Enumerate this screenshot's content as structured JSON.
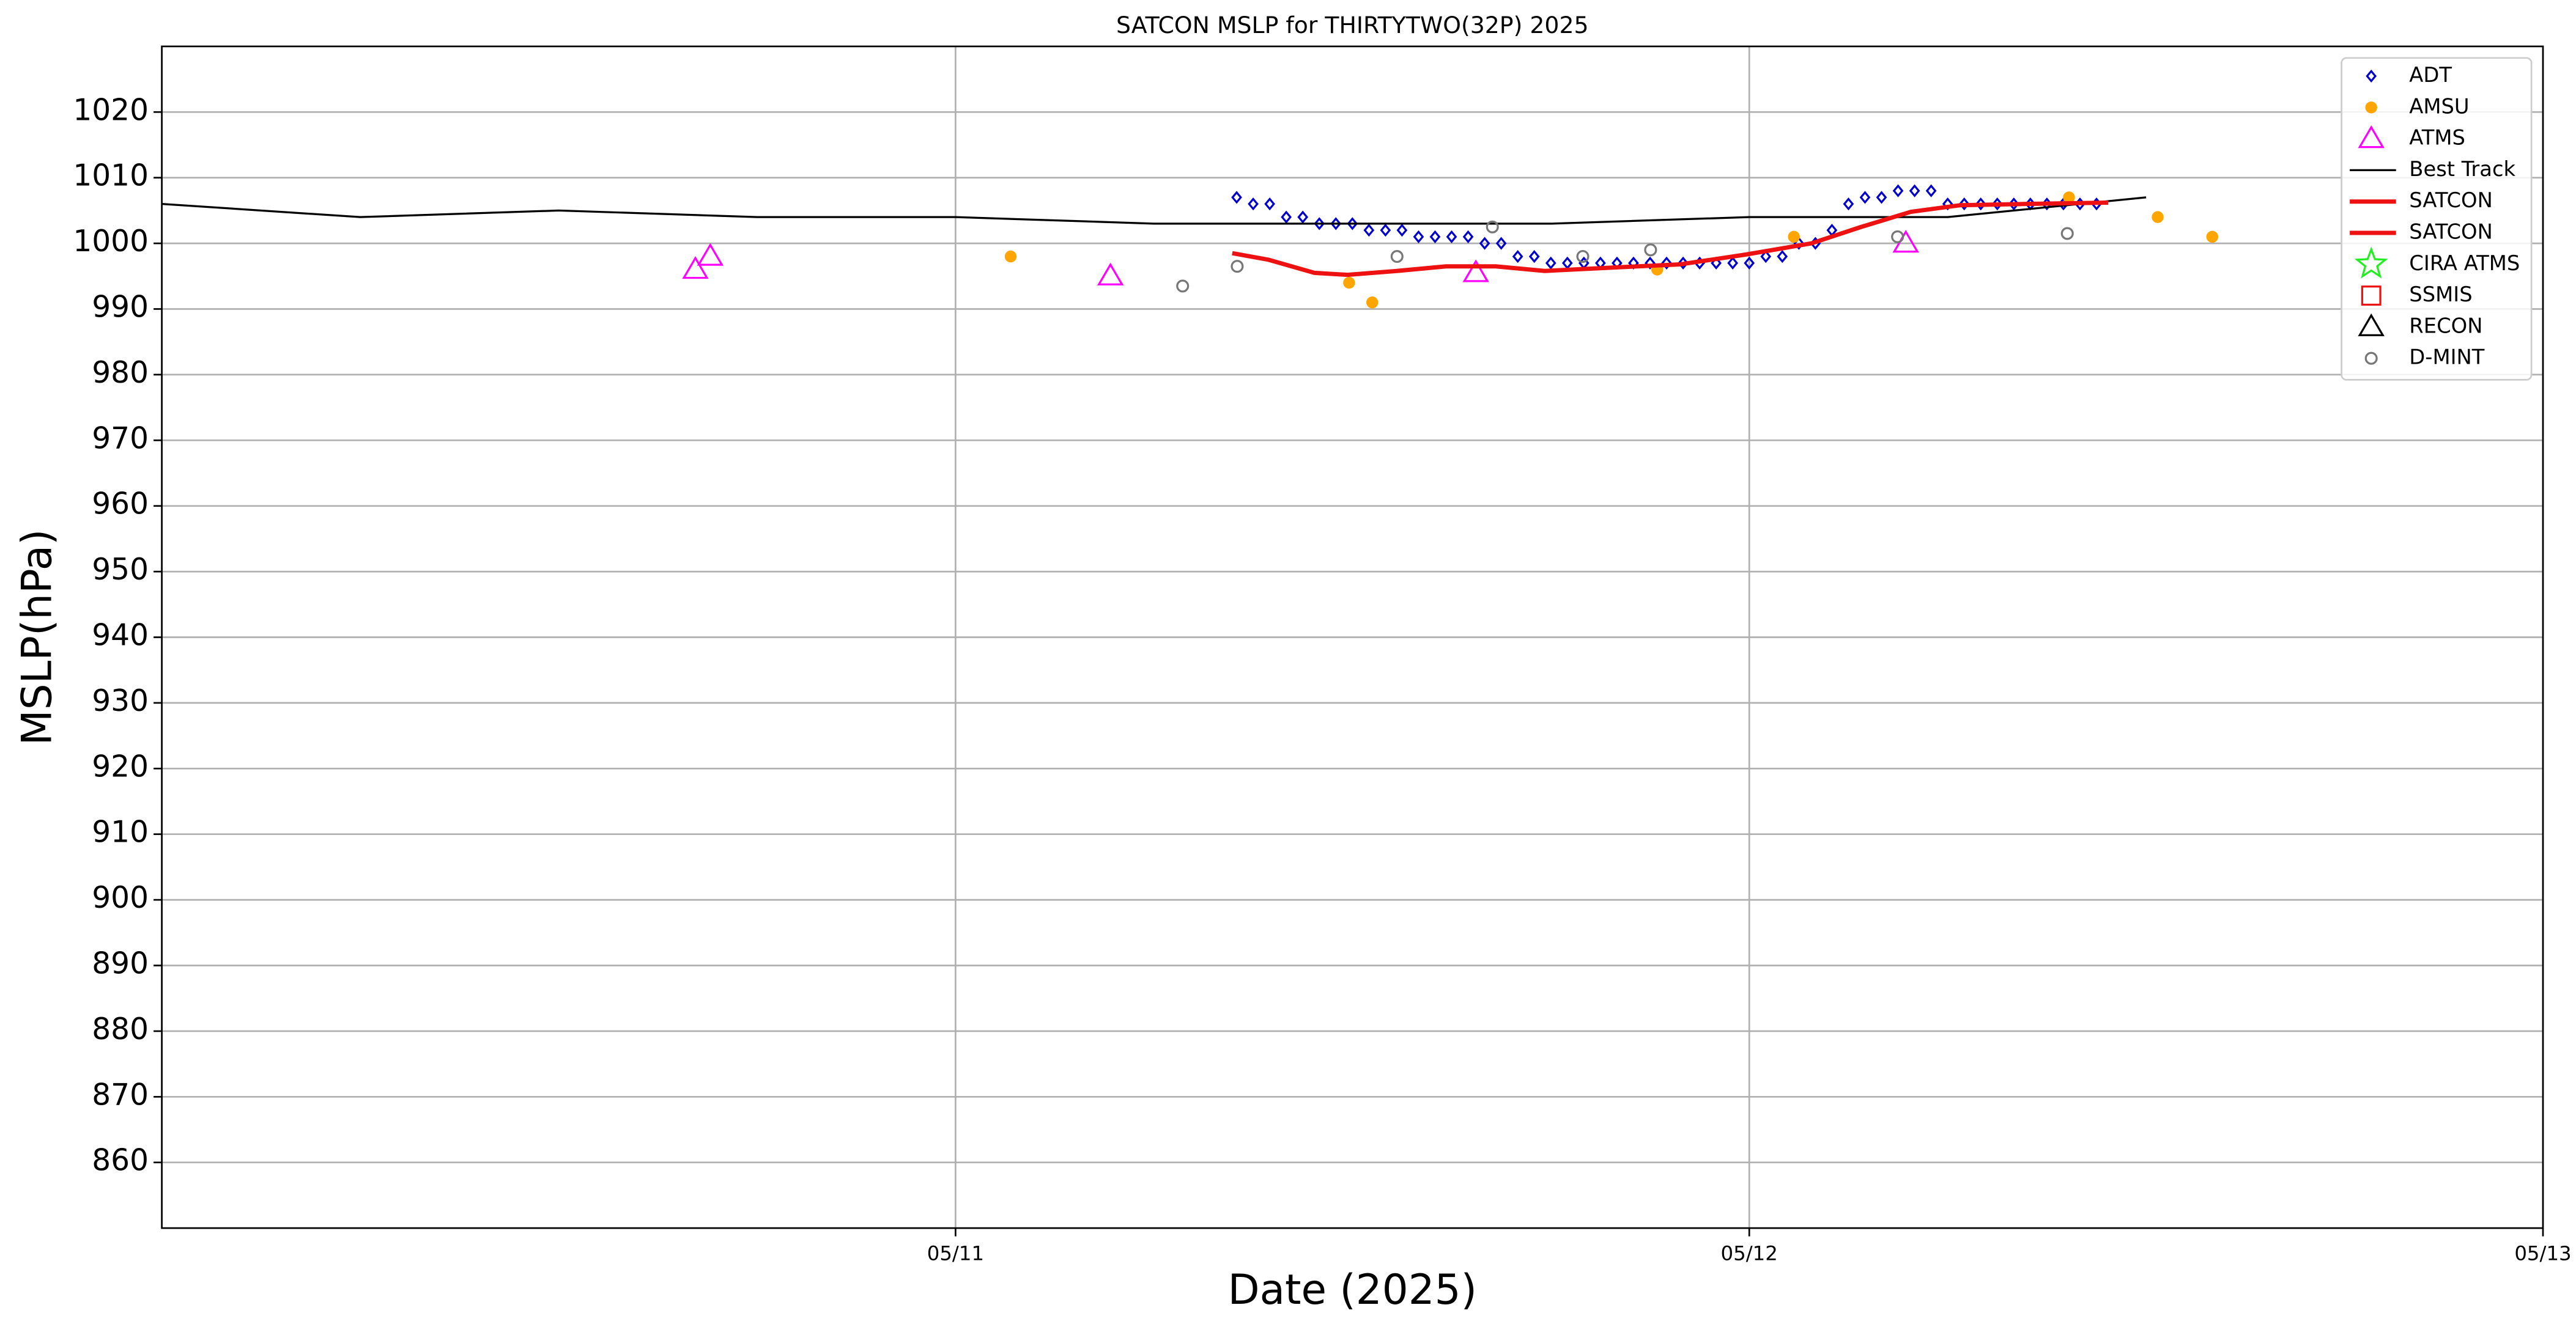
{
  "chart_data": {
    "type": "line",
    "title": "SATCON MSLP for THIRTYTWO(32P) 2025",
    "xlabel": "Date (2025)",
    "ylabel": "MSLP(hPa)",
    "xlim": [
      "2025-05-10T00:00",
      "2025-05-13T00:00"
    ],
    "xticks": [
      {
        "value": "2025-05-11T00:00",
        "label": "05/11"
      },
      {
        "value": "2025-05-12T00:00",
        "label": "05/12"
      },
      {
        "value": "2025-05-13T00:00",
        "label": "05/13"
      }
    ],
    "ylim": [
      850,
      1030
    ],
    "yticks": [
      860,
      870,
      880,
      890,
      900,
      910,
      920,
      930,
      940,
      950,
      960,
      970,
      980,
      990,
      1000,
      1010,
      1020
    ],
    "grid": true,
    "legend": "upper right",
    "series": [
      {
        "name": "ADT",
        "color": "#0000cc",
        "marker": "diamond",
        "filled": false,
        "x": [
          "2025-05-11T08:30",
          "2025-05-11T09:00",
          "2025-05-11T09:30",
          "2025-05-11T10:00",
          "2025-05-11T10:30",
          "2025-05-11T11:00",
          "2025-05-11T11:30",
          "2025-05-11T12:00",
          "2025-05-11T12:30",
          "2025-05-11T13:00",
          "2025-05-11T13:30",
          "2025-05-11T14:00",
          "2025-05-11T14:30",
          "2025-05-11T15:00",
          "2025-05-11T15:30",
          "2025-05-11T16:00",
          "2025-05-11T16:30",
          "2025-05-11T17:00",
          "2025-05-11T17:30",
          "2025-05-11T18:00",
          "2025-05-11T18:30",
          "2025-05-11T19:00",
          "2025-05-11T19:30",
          "2025-05-11T20:00",
          "2025-05-11T20:30",
          "2025-05-11T21:00",
          "2025-05-11T21:30",
          "2025-05-11T22:00",
          "2025-05-11T22:30",
          "2025-05-11T23:00",
          "2025-05-11T23:30",
          "2025-05-12T00:00",
          "2025-05-12T00:30",
          "2025-05-12T01:00",
          "2025-05-12T01:30",
          "2025-05-12T02:00",
          "2025-05-12T02:30",
          "2025-05-12T03:00",
          "2025-05-12T03:30",
          "2025-05-12T04:00",
          "2025-05-12T04:30",
          "2025-05-12T05:00",
          "2025-05-12T05:30",
          "2025-05-12T06:00",
          "2025-05-12T06:30",
          "2025-05-12T07:00",
          "2025-05-12T07:30",
          "2025-05-12T08:00",
          "2025-05-12T08:30",
          "2025-05-12T09:00",
          "2025-05-12T09:30",
          "2025-05-12T10:00",
          "2025-05-12T10:30"
        ],
        "values": [
          1007,
          1006,
          1006,
          1004,
          1004,
          1003,
          1003,
          1003,
          1002,
          1002,
          1002,
          1001,
          1001,
          1001,
          1001,
          1000,
          1000,
          998,
          998,
          997,
          997,
          997,
          997,
          997,
          997,
          997,
          997,
          997,
          997,
          997,
          997,
          997,
          998,
          998,
          1000,
          1000,
          1002,
          1006,
          1007,
          1007,
          1008,
          1008,
          1008,
          1006,
          1006,
          1006,
          1006,
          1006,
          1006,
          1006,
          1006,
          1006,
          1006
        ]
      },
      {
        "name": "AMSU",
        "color": "#ffa500",
        "marker": "circle",
        "filled": true,
        "x": [
          "2025-05-11T01:40",
          "2025-05-11T11:54",
          "2025-05-11T12:36",
          "2025-05-11T21:13",
          "2025-05-12T01:21",
          "2025-05-12T09:40",
          "2025-05-12T12:21",
          "2025-05-12T14:00"
        ],
        "values": [
          998,
          994,
          991,
          996,
          1001,
          1007,
          1004,
          1001
        ]
      },
      {
        "name": "ATMS",
        "color": "#ff00ff",
        "marker": "triangle",
        "filled": false,
        "x": [
          "2025-05-10T16:08",
          "2025-05-10T16:35",
          "2025-05-11T04:41",
          "2025-05-11T15:44",
          "2025-05-12T04:44"
        ],
        "values": [
          996,
          998,
          995,
          995.5,
          1000
        ]
      },
      {
        "name": "Best Track",
        "color": "#000000",
        "marker": "line",
        "width": 1.2,
        "x": [
          "2025-05-10T00:00",
          "2025-05-10T06:00",
          "2025-05-10T12:00",
          "2025-05-10T18:00",
          "2025-05-11T00:00",
          "2025-05-11T06:00",
          "2025-05-11T12:00",
          "2025-05-11T18:00",
          "2025-05-12T00:00",
          "2025-05-12T06:00",
          "2025-05-12T12:00"
        ],
        "values": [
          1006,
          1004,
          1005,
          1004,
          1004,
          1003,
          1003,
          1003,
          1004,
          1004,
          1007
        ]
      },
      {
        "name": "SATCON",
        "color": "#ee1111",
        "marker": "line",
        "width": 2.6,
        "x": [
          "2025-05-11T08:22",
          "2025-05-11T09:28",
          "2025-05-11T10:51",
          "2025-05-11T11:51",
          "2025-05-11T13:21",
          "2025-05-11T14:50",
          "2025-05-11T16:20",
          "2025-05-11T17:49",
          "2025-05-11T19:49",
          "2025-05-11T21:55",
          "2025-05-11T23:54",
          "2025-05-12T01:53",
          "2025-05-12T03:23",
          "2025-05-12T04:53",
          "2025-05-12T06:22",
          "2025-05-12T08:22",
          "2025-05-12T10:51"
        ],
        "values": [
          998.5,
          997.5,
          995.5,
          995.2,
          995.8,
          996.5,
          996.5,
          995.8,
          996.3,
          996.8,
          998.3,
          1000,
          1002.5,
          1004.8,
          1005.8,
          1006,
          1006.2
        ]
      },
      {
        "name": "SATCON",
        "color": "#ee1111",
        "marker": "line",
        "width": 2.6,
        "x": [],
        "values": []
      },
      {
        "name": "CIRA ATMS",
        "color": "#22ee22",
        "marker": "star",
        "filled": false,
        "x": [],
        "values": []
      },
      {
        "name": "SSMIS",
        "color": "#ee1111",
        "marker": "square",
        "filled": false,
        "x": [],
        "values": []
      },
      {
        "name": "RECON",
        "color": "#000000",
        "marker": "triangle",
        "filled": false,
        "x": [],
        "values": []
      },
      {
        "name": "D-MINT",
        "color": "#777777",
        "marker": "circle",
        "filled": false,
        "x": [
          "2025-05-11T06:52",
          "2025-05-11T08:31",
          "2025-05-11T13:21",
          "2025-05-11T16:14",
          "2025-05-11T18:58",
          "2025-05-11T21:01",
          "2025-05-12T04:29",
          "2025-05-12T09:37"
        ],
        "values": [
          993.5,
          996.5,
          998,
          1002.5,
          998,
          999,
          1001,
          1001.5
        ]
      }
    ]
  }
}
